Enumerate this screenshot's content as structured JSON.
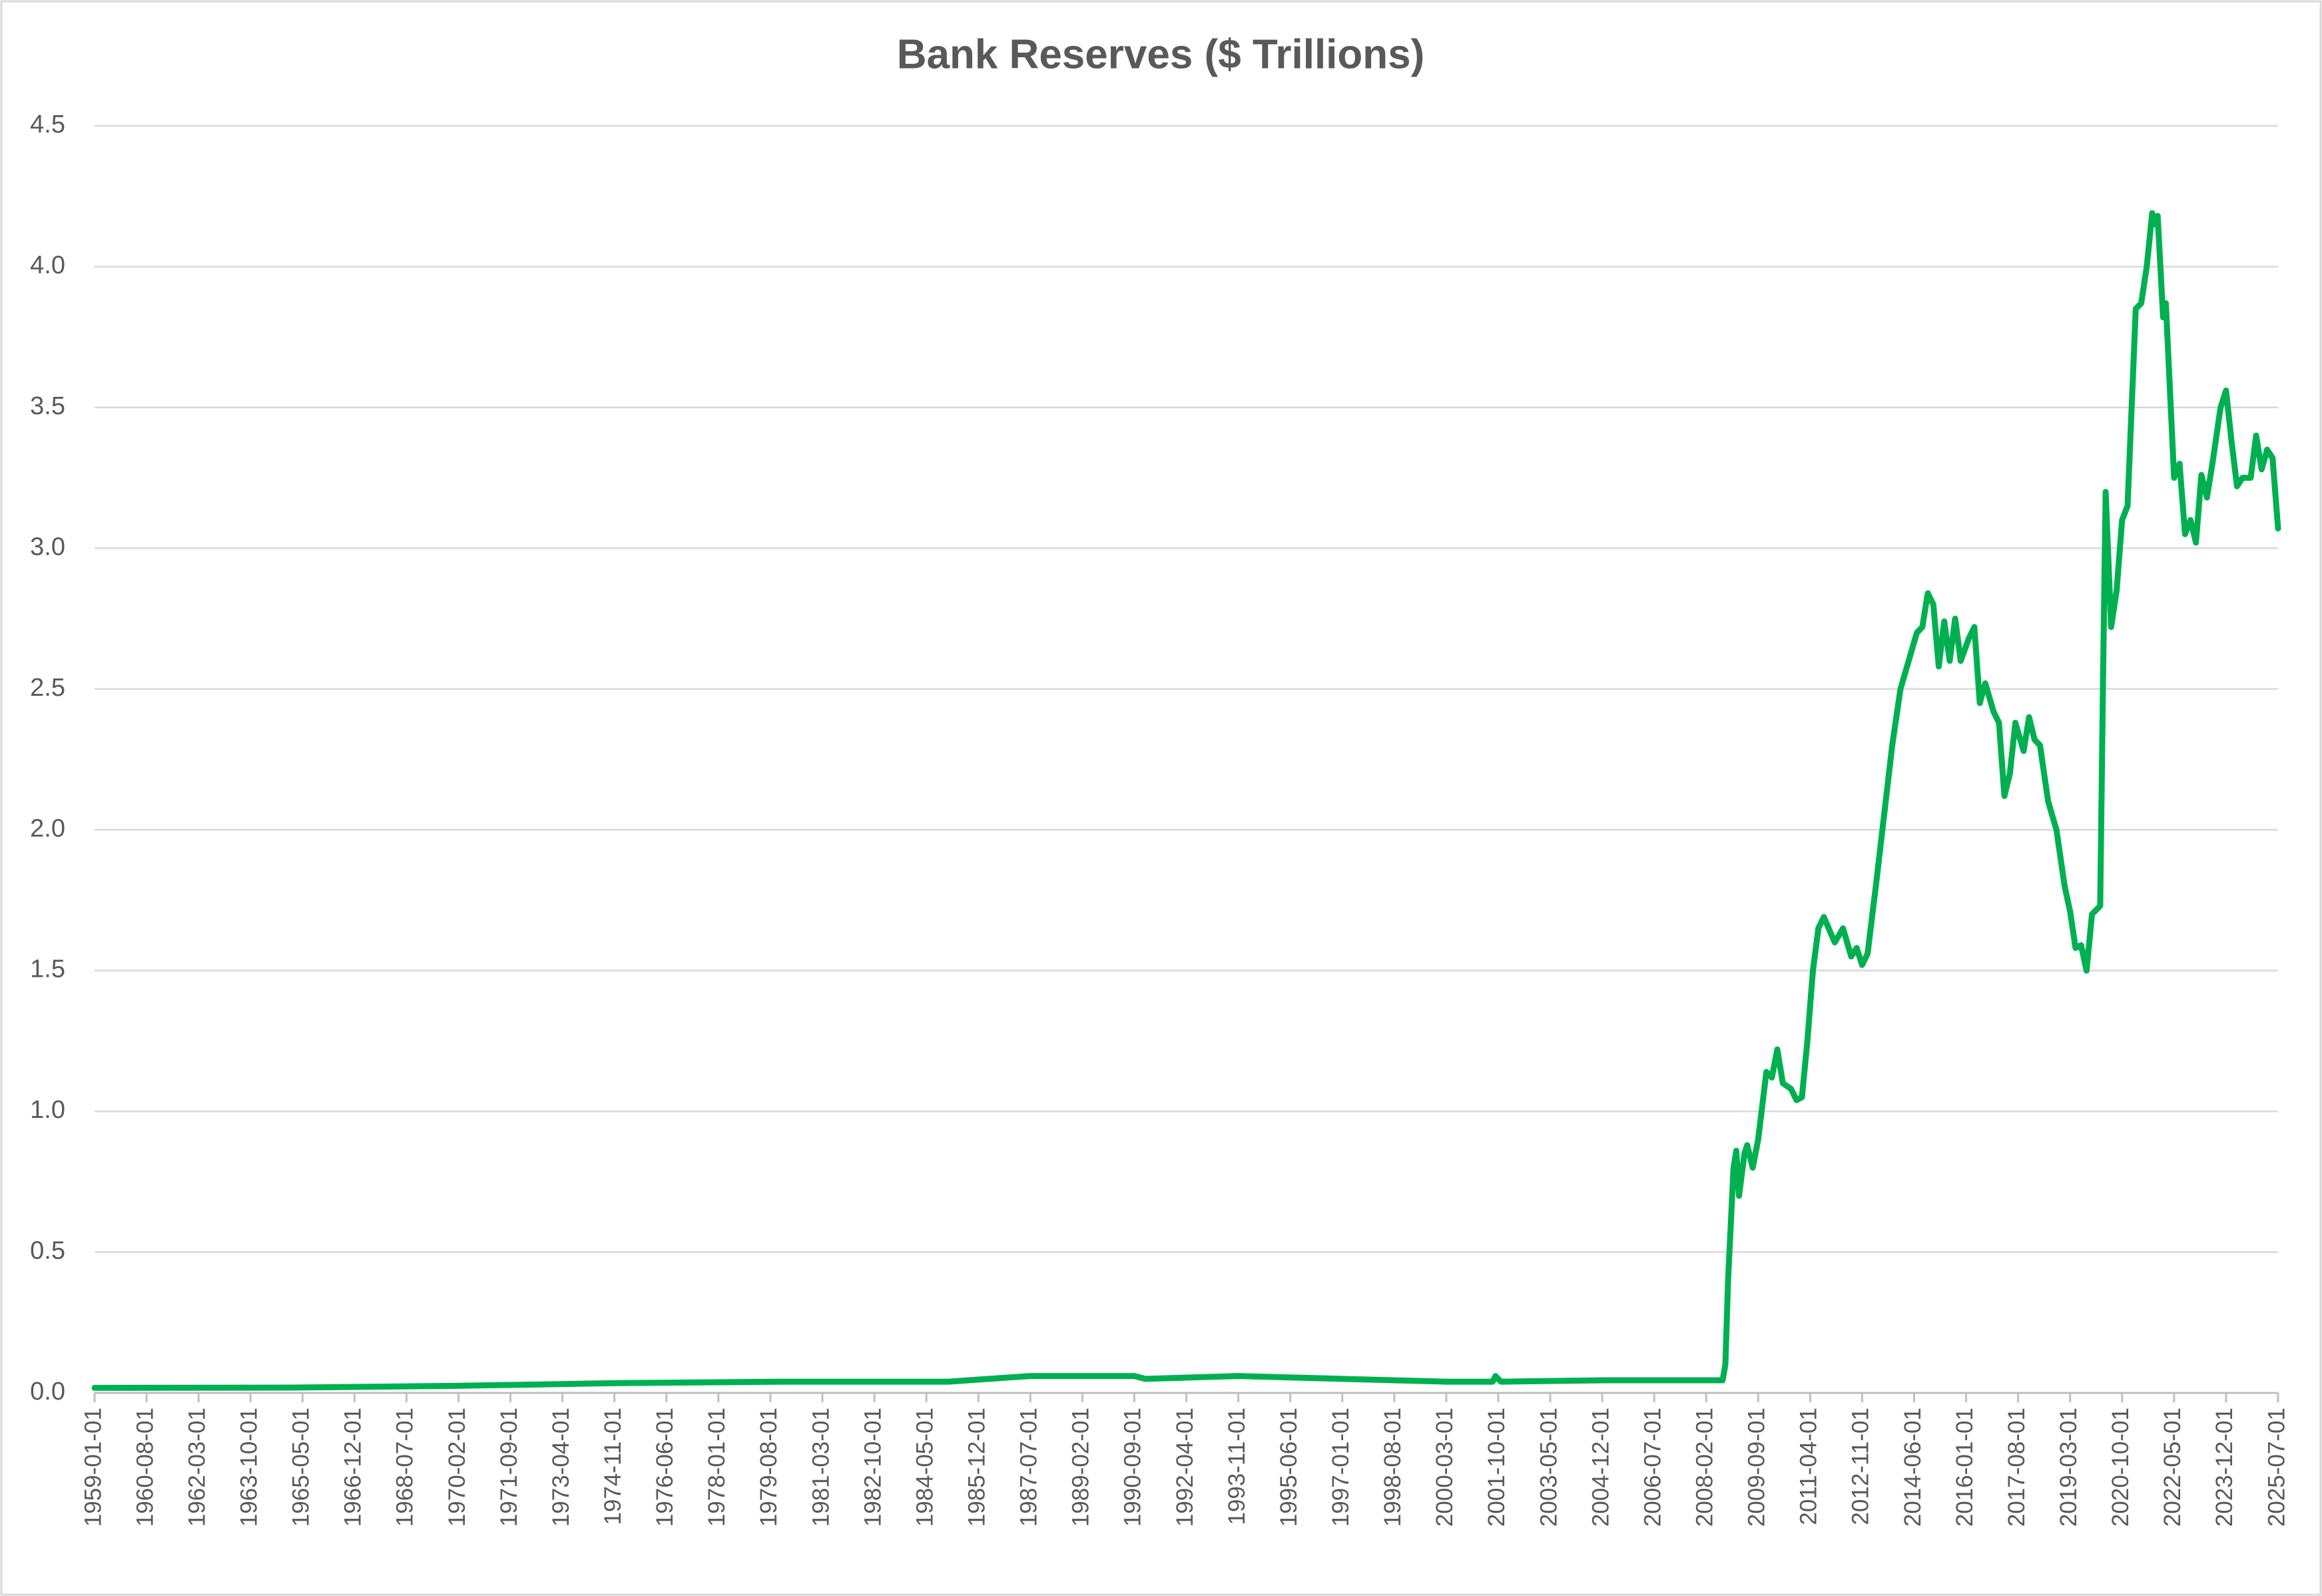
{
  "chart_data": {
    "type": "line",
    "title": "Bank Reserves ($ Trillions)",
    "color": "#00b050",
    "grid": true,
    "ylim": [
      0,
      4.5
    ],
    "yticks": [
      {
        "value": 0,
        "label": "0.0"
      },
      0.5,
      {
        "value": 1,
        "label": "1.0"
      },
      1.5,
      {
        "value": 2,
        "label": "2.0"
      },
      2.5,
      {
        "value": 3,
        "label": "3.0"
      },
      3.5,
      {
        "value": 4,
        "label": "4.0"
      },
      4.5
    ],
    "xlim": [
      "1959-01-01",
      "2025-07-01"
    ],
    "xticks": [
      "1959-01-01",
      "1960-08-01",
      "1962-03-01",
      "1963-10-01",
      "1965-05-01",
      "1966-12-01",
      "1968-07-01",
      "1970-02-01",
      "1971-09-01",
      "1973-04-01",
      "1974-11-01",
      "1976-06-01",
      "1978-01-01",
      "1979-08-01",
      "1981-03-01",
      "1982-10-01",
      "1984-05-01",
      "1985-12-01",
      "1987-07-01",
      "1989-02-01",
      "1990-09-01",
      "1992-04-01",
      "1993-11-01",
      "1995-06-01",
      "1997-01-01",
      "1998-08-01",
      "2000-03-01",
      "2001-10-01",
      "2003-05-01",
      "2004-12-01",
      "2006-07-01",
      "2008-02-01",
      "2009-09-01",
      "2011-04-01",
      "2012-11-01",
      "2014-06-01",
      "2016-01-01",
      "2017-08-01",
      "2019-03-01",
      "2020-10-01",
      "2022-05-01",
      "2023-12-01",
      "2025-07-01"
    ],
    "x": [
      "1959-01-01",
      "1965-01-01",
      "1970-01-01",
      "1975-01-01",
      "1980-01-01",
      "1985-01-01",
      "1987-07-01",
      "1990-09-01",
      "1991-01-01",
      "1993-11-01",
      "1997-01-01",
      "2000-03-01",
      "2001-08-01",
      "2001-09-01",
      "2001-11-01",
      "2005-01-01",
      "2008-08-01",
      "2008-09-01",
      "2008-10-01",
      "2008-12-01",
      "2009-01-01",
      "2009-02-01",
      "2009-04-01",
      "2009-05-01",
      "2009-07-01",
      "2009-09-01",
      "2009-12-01",
      "2010-02-01",
      "2010-04-01",
      "2010-06-01",
      "2010-09-01",
      "2010-11-01",
      "2011-01-01",
      "2011-03-01",
      "2011-05-01",
      "2011-07-01",
      "2011-09-01",
      "2012-01-01",
      "2012-04-01",
      "2012-07-01",
      "2012-09-01",
      "2012-11-01",
      "2013-01-01",
      "2013-04-01",
      "2013-07-01",
      "2013-10-01",
      "2014-01-01",
      "2014-04-01",
      "2014-07-01",
      "2014-09-01",
      "2014-11-01",
      "2015-01-01",
      "2015-03-01",
      "2015-05-01",
      "2015-07-01",
      "2015-09-01",
      "2015-11-01",
      "2016-02-01",
      "2016-04-01",
      "2016-06-01",
      "2016-08-01",
      "2016-11-01",
      "2017-01-01",
      "2017-03-01",
      "2017-05-01",
      "2017-07-01",
      "2017-10-01",
      "2017-12-01",
      "2018-02-01",
      "2018-04-01",
      "2018-07-01",
      "2018-10-01",
      "2019-01-01",
      "2019-03-01",
      "2019-05-01",
      "2019-07-01",
      "2019-09-01",
      "2019-11-01",
      "2020-02-01",
      "2020-03-01",
      "2020-04-01",
      "2020-06-01",
      "2020-08-01",
      "2020-10-01",
      "2020-12-01",
      "2021-03-01",
      "2021-05-01",
      "2021-07-01",
      "2021-09-01",
      "2021-10-01",
      "2021-11-01",
      "2022-01-01",
      "2022-02-01",
      "2022-05-01",
      "2022-07-01",
      "2022-09-01",
      "2022-11-01",
      "2023-01-01",
      "2023-03-01",
      "2023-05-01",
      "2023-07-01",
      "2023-10-01",
      "2023-12-01",
      "2024-02-01",
      "2024-04-01",
      "2024-06-01",
      "2024-09-01",
      "2024-11-01",
      "2025-01-01",
      "2025-03-01",
      "2025-05-01",
      "2025-07-01"
    ],
    "values": [
      0.018,
      0.019,
      0.025,
      0.035,
      0.04,
      0.04,
      0.06,
      0.06,
      0.05,
      0.06,
      0.05,
      0.04,
      0.04,
      0.06,
      0.04,
      0.045,
      0.045,
      0.1,
      0.4,
      0.8,
      0.86,
      0.7,
      0.85,
      0.88,
      0.8,
      0.9,
      1.14,
      1.12,
      1.22,
      1.1,
      1.08,
      1.04,
      1.05,
      1.25,
      1.5,
      1.65,
      1.69,
      1.6,
      1.65,
      1.55,
      1.58,
      1.52,
      1.56,
      1.8,
      2.05,
      2.3,
      2.5,
      2.6,
      2.7,
      2.72,
      2.84,
      2.8,
      2.58,
      2.74,
      2.6,
      2.75,
      2.6,
      2.68,
      2.72,
      2.45,
      2.52,
      2.42,
      2.38,
      2.12,
      2.2,
      2.38,
      2.28,
      2.4,
      2.32,
      2.3,
      2.1,
      2.0,
      1.8,
      1.71,
      1.58,
      1.59,
      1.5,
      1.7,
      1.73,
      2.5,
      3.2,
      2.72,
      2.85,
      3.1,
      3.15,
      3.85,
      3.87,
      4.0,
      4.19,
      4.15,
      4.18,
      3.82,
      3.87,
      3.25,
      3.3,
      3.05,
      3.1,
      3.02,
      3.26,
      3.18,
      3.3,
      3.5,
      3.56,
      3.38,
      3.22,
      3.25,
      3.25,
      3.4,
      3.28,
      3.35,
      3.32,
      3.07
    ]
  }
}
